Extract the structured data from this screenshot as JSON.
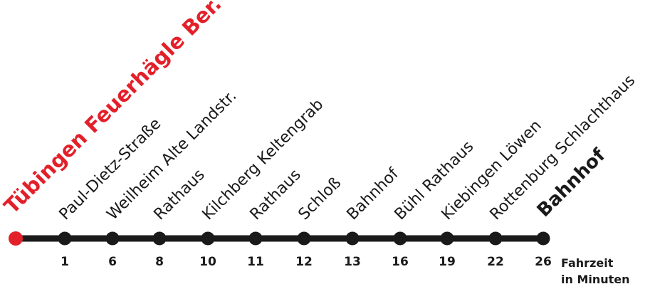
{
  "colors": {
    "line": "#1a1a1a",
    "stop": "#1a1a1a",
    "origin": "#e3202a",
    "text": "#1a1a1a"
  },
  "route": {
    "stops": [
      {
        "name": "Tübingen Feuerhägle Ber.",
        "time": "",
        "role": "origin"
      },
      {
        "name": "Paul-Dietz-Straße",
        "time": "1",
        "role": "stop"
      },
      {
        "name": "Weilheim Alte Landstr.",
        "time": "6",
        "role": "stop"
      },
      {
        "name": "Rathaus",
        "time": "8",
        "role": "stop"
      },
      {
        "name": "Kilchberg Keltengrab",
        "time": "10",
        "role": "stop"
      },
      {
        "name": "Rathaus",
        "time": "11",
        "role": "stop"
      },
      {
        "name": "Schloß",
        "time": "12",
        "role": "stop"
      },
      {
        "name": "Bahnhof",
        "time": "13",
        "role": "stop"
      },
      {
        "name": "Bühl Rathaus",
        "time": "16",
        "role": "stop"
      },
      {
        "name": "Kiebingen Löwen",
        "time": "19",
        "role": "stop"
      },
      {
        "name": "Rottenburg Schlachthaus",
        "time": "22",
        "role": "stop"
      },
      {
        "name": "Bahnhof",
        "time": "26",
        "role": "terminus"
      }
    ]
  },
  "legend": {
    "line1": "Fahrzeit",
    "line2": "in Minuten"
  }
}
